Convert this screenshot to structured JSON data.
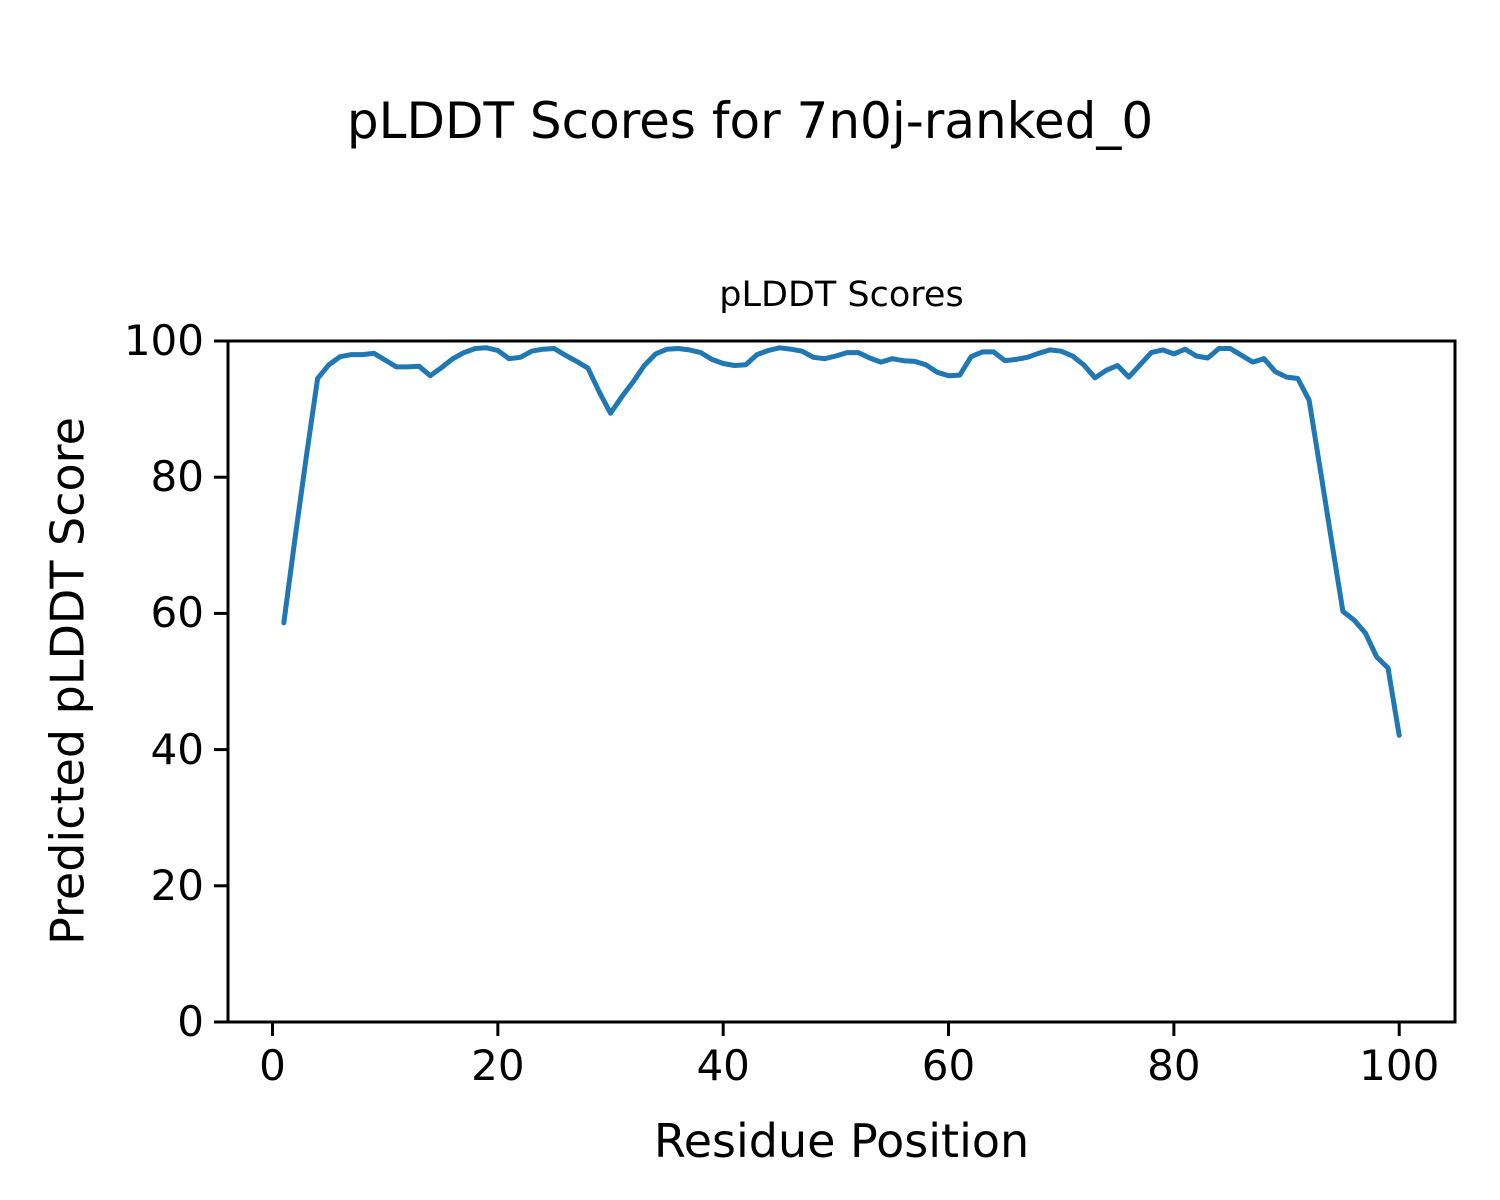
{
  "figure": {
    "suptitle": "pLDDT Scores for 7n0j-ranked_0",
    "background": "#ffffff",
    "text_color": "#000000"
  },
  "chart_data": {
    "type": "line",
    "title": "pLDDT Scores",
    "xlabel": "Residue Position",
    "ylabel": "Predicted pLDDT Score",
    "xlim": [
      -3.95,
      104.95
    ],
    "ylim": [
      0,
      100
    ],
    "xticks": [
      0,
      20,
      40,
      60,
      80,
      100
    ],
    "yticks": [
      0,
      20,
      40,
      60,
      80,
      100
    ],
    "grid": false,
    "legend": null,
    "line_color": "#1f77b4",
    "line_width": 5,
    "marker": "none",
    "series": [
      {
        "name": "pLDDT",
        "x": [
          1,
          2,
          3,
          4,
          5,
          6,
          7,
          8,
          9,
          10,
          11,
          12,
          13,
          14,
          15,
          16,
          17,
          18,
          19,
          20,
          21,
          22,
          23,
          24,
          25,
          26,
          27,
          28,
          29,
          30,
          31,
          32,
          33,
          34,
          35,
          36,
          37,
          38,
          39,
          40,
          41,
          42,
          43,
          44,
          45,
          46,
          47,
          48,
          49,
          50,
          51,
          52,
          53,
          54,
          55,
          56,
          57,
          58,
          59,
          60,
          61,
          62,
          63,
          64,
          65,
          66,
          67,
          68,
          69,
          70,
          71,
          72,
          73,
          74,
          75,
          76,
          77,
          78,
          79,
          80,
          81,
          82,
          83,
          84,
          85,
          86,
          87,
          88,
          89,
          90,
          91,
          92,
          93,
          94,
          95,
          96,
          97,
          98,
          99,
          100
        ],
        "values": [
          58.6,
          71.0,
          83.0,
          94.5,
          96.5,
          97.7,
          98.0,
          98.0,
          98.2,
          97.2,
          96.2,
          96.2,
          96.3,
          94.9,
          96.1,
          97.4,
          98.3,
          98.9,
          99.0,
          98.6,
          97.4,
          97.6,
          98.5,
          98.8,
          98.9,
          97.9,
          97.0,
          96.0,
          92.5,
          89.4,
          91.8,
          94.0,
          96.4,
          98.1,
          98.8,
          98.9,
          98.7,
          98.3,
          97.3,
          96.7,
          96.4,
          96.5,
          98.0,
          98.6,
          99.0,
          98.8,
          98.5,
          97.6,
          97.4,
          97.8,
          98.3,
          98.3,
          97.5,
          96.9,
          97.4,
          97.1,
          97.0,
          96.5,
          95.4,
          94.9,
          95.0,
          97.7,
          98.4,
          98.4,
          97.1,
          97.3,
          97.6,
          98.2,
          98.7,
          98.5,
          97.8,
          96.5,
          94.6,
          95.7,
          96.4,
          94.7,
          96.5,
          98.3,
          98.7,
          98.1,
          98.8,
          97.8,
          97.5,
          98.9,
          98.9,
          97.9,
          96.9,
          97.4,
          95.5,
          94.7,
          94.5,
          91.3,
          81.0,
          70.6,
          60.3,
          59.0,
          57.1,
          53.6,
          52.0,
          42.1
        ]
      }
    ]
  }
}
